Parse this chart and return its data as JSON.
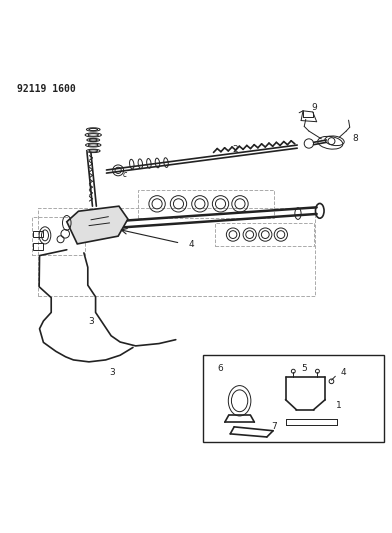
{
  "title_code": "92119 1600",
  "bg_color": "#ffffff",
  "line_color": "#222222",
  "fig_width": 3.92,
  "fig_height": 5.33,
  "dpi": 100
}
